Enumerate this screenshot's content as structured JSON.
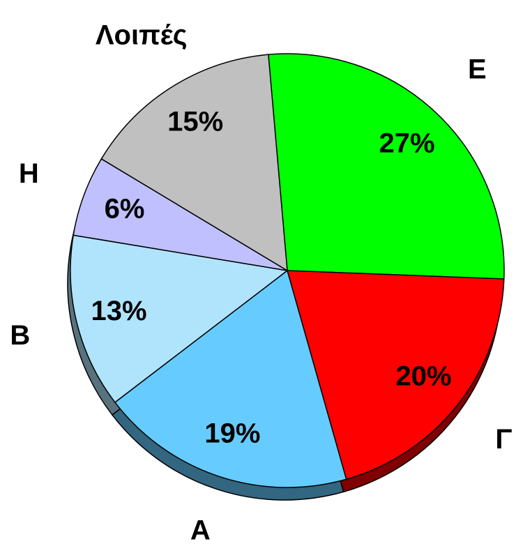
{
  "chart_data": {
    "type": "pie",
    "categories": [
      "Ε",
      "Γ",
      "Α",
      "Β",
      "Η",
      "Λοιπές"
    ],
    "values": [
      27,
      20,
      19,
      13,
      6,
      15
    ],
    "value_labels": [
      "27%",
      "20%",
      "19%",
      "13%",
      "6%",
      "15%"
    ],
    "colors": [
      "#00ff00",
      "#ff0000",
      "#66ccff",
      "#b0e4fc",
      "#c0c0ff",
      "#c0c0c0"
    ]
  }
}
